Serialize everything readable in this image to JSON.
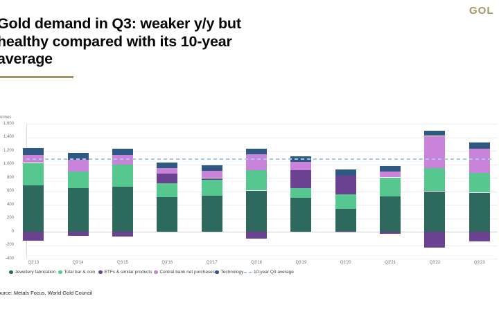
{
  "header": {
    "title_lines": [
      "Gold demand in Q3: weaker y/y but",
      "healthy compared with its 10-year",
      "average"
    ],
    "logo": "GOL"
  },
  "chart_data": {
    "type": "bar",
    "stacked": true,
    "title": "Gold demand in Q3: weaker y/y but healthy compared with its 10-year average",
    "ylabel": "Tonnes",
    "xlabel": "",
    "categories": [
      "Q3'13",
      "Q3'14",
      "Q3'15",
      "Q3'16",
      "Q3'17",
      "Q3'18",
      "Q3'19",
      "Q3'20",
      "Q3'21",
      "Q3'22",
      "Q3'23"
    ],
    "series": [
      {
        "name": "Jewellery fabrication",
        "color": "#2d6a5d",
        "values": [
          690,
          650,
          665,
          510,
          535,
          610,
          505,
          335,
          525,
          600,
          580
        ]
      },
      {
        "name": "Total bar & coin",
        "color": "#56c78e",
        "values": [
          330,
          240,
          330,
          205,
          240,
          305,
          140,
          220,
          280,
          345,
          295
        ]
      },
      {
        "name": "ETFs & similar products",
        "color": "#6b4191",
        "values": [
          -130,
          -60,
          -70,
          145,
          20,
          -105,
          270,
          275,
          -30,
          -240,
          -145
        ]
      },
      {
        "name": "Central bank net purchases",
        "color": "#ca83da",
        "values": [
          115,
          180,
          140,
          85,
          105,
          235,
          125,
          -10,
          90,
          475,
          355
        ]
      },
      {
        "name": "Technology",
        "color": "#2d5982",
        "values": [
          105,
          95,
          100,
          85,
          85,
          80,
          80,
          90,
          75,
          75,
          90
        ]
      }
    ],
    "reference_line": {
      "label": "10-year Q3 average",
      "value": 1080,
      "color": "#a6c9e6",
      "style": "dashed"
    },
    "ylim": [
      -400,
      1600
    ],
    "ytick_step": 200,
    "grid": true,
    "legend_position": "bottom"
  },
  "source": "Source: Metals Focus, World Gold Council",
  "colors": {
    "accent_gold": "#a09464",
    "logo_gold": "#a29567"
  }
}
